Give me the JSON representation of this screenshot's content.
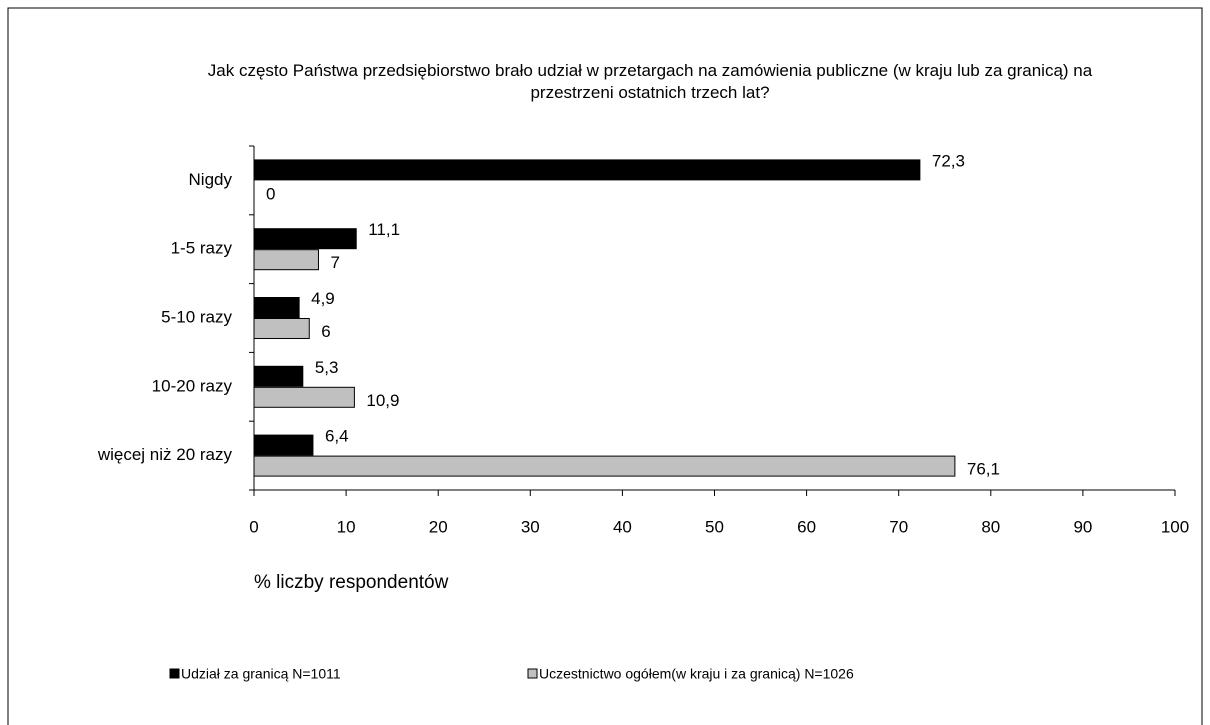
{
  "chart_data": {
    "type": "hbar",
    "title": "Jak często Państwa przedsiębiorstwo brało udział w przetargach na zamówienia publiczne (w kraju lub za granicą) na przestrzeni ostatnich trzech lat?",
    "categories": [
      "Nigdy",
      "1-5 razy",
      "5-10 razy",
      "10-20 razy",
      "więcej niż 20 razy"
    ],
    "series": [
      {
        "name": "Udział za granicą N=1011",
        "color": "#000000",
        "values": [
          72.3,
          11.1,
          4.9,
          5.3,
          6.4
        ],
        "value_labels": [
          "72,3",
          "11,1",
          "4,9",
          "5,3",
          "6,4"
        ]
      },
      {
        "name": "Uczestnictwo ogółem(w kraju i za granicą) N=1026",
        "color": "#c0c0c0",
        "values": [
          0,
          7,
          6,
          10.9,
          76.1
        ],
        "value_labels": [
          "0",
          "7",
          "6",
          "10,9",
          "76,1"
        ]
      }
    ],
    "xlabel": "% liczby respondentów",
    "xlim": [
      0,
      100
    ],
    "xticks": [
      0,
      10,
      20,
      30,
      40,
      50,
      60,
      70,
      80,
      90,
      100
    ],
    "grid": false,
    "legend": "bottom"
  }
}
